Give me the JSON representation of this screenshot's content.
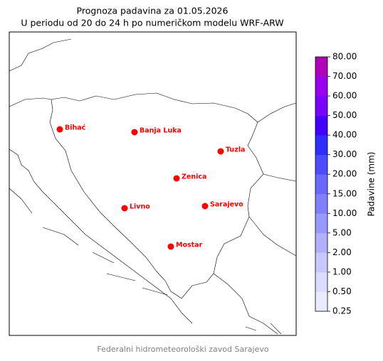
{
  "header": {
    "title": "Prognoza padavina za 01.05.2026",
    "subtitle": "U periodu od 20 do 24 h po numeričkom modelu WRF-ARW"
  },
  "map": {
    "cities": [
      {
        "label": "Bihać"
      },
      {
        "label": "Banja Luka"
      },
      {
        "label": "Tuzla"
      },
      {
        "label": "Zenica"
      },
      {
        "label": "Livno"
      },
      {
        "label": "Sarajevo"
      },
      {
        "label": "Mostar"
      }
    ],
    "marker_color": "#ff0000"
  },
  "colorbar": {
    "label": "Padavine (mm)",
    "ticks": [
      {
        "value": 0.25,
        "label": "0.25"
      },
      {
        "value": 0.5,
        "label": "0.50"
      },
      {
        "value": 1,
        "label": "1.00"
      },
      {
        "value": 2,
        "label": "2.00"
      },
      {
        "value": 5,
        "label": "5.00"
      },
      {
        "value": 10,
        "label": "10.00"
      },
      {
        "value": 15,
        "label": "15.00"
      },
      {
        "value": 20,
        "label": "20.00"
      },
      {
        "value": 30,
        "label": "30.00"
      },
      {
        "value": 40,
        "label": "40.00"
      },
      {
        "value": 50,
        "label": "50.00"
      },
      {
        "value": 60,
        "label": "60.00"
      },
      {
        "value": 70,
        "label": "70.00"
      },
      {
        "value": 80,
        "label": "80.00"
      }
    ],
    "colors": [
      "#ebebff",
      "#dcdcff",
      "#c8c8ff",
      "#b0b0ff",
      "#9898ff",
      "#8080ff",
      "#6868ff",
      "#4c4cff",
      "#2e2eff",
      "#4400ff",
      "#7a00ff",
      "#9a00f0",
      "#b000b8"
    ]
  },
  "footer": "Federalni hidrometeorološki zavod Sarajevo"
}
